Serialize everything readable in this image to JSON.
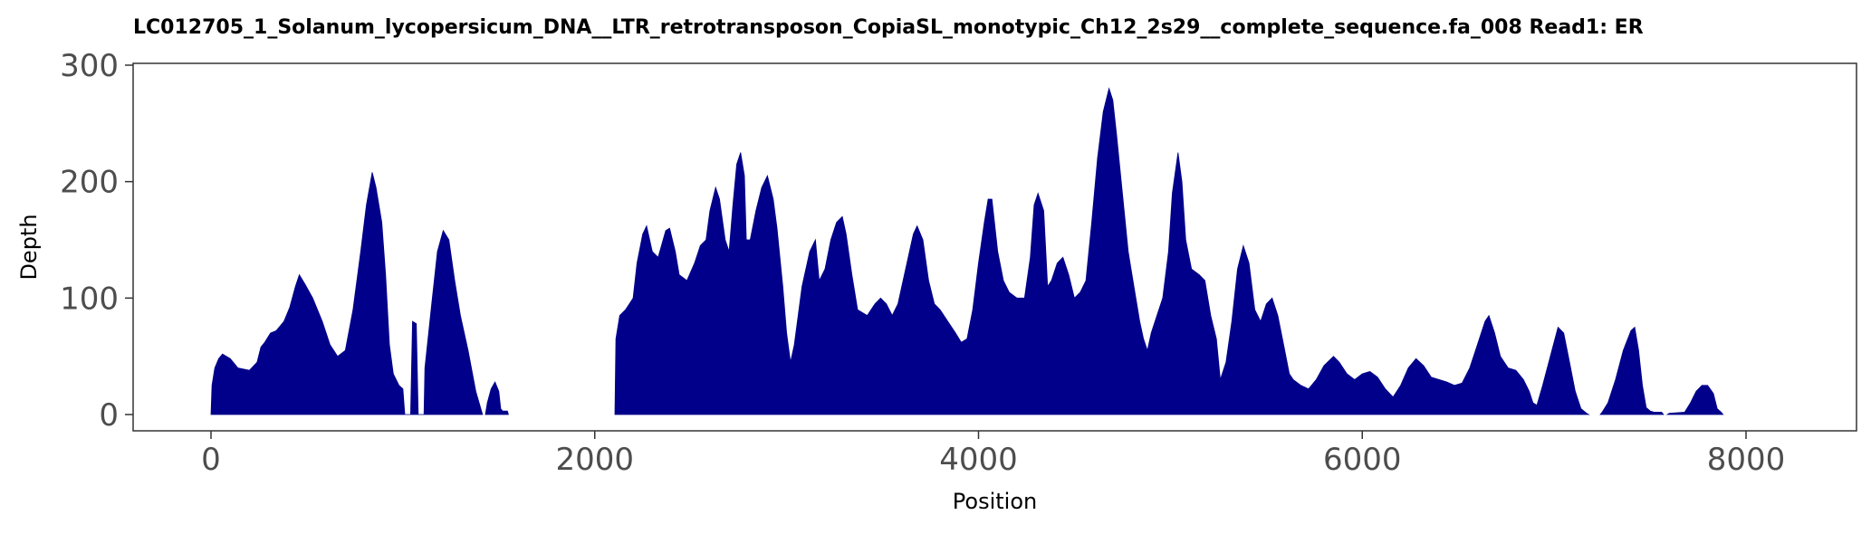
{
  "chart_data": {
    "type": "area",
    "title": "LC012705_1_Solanum_lycopersicum_DNA__LTR_retrotransposon_CopiaSL_monotypic_Ch12_2s29__complete_sequence.fa_008   Read1: ER",
    "xlabel": "Position",
    "ylabel": "Depth",
    "xlim": [
      -400,
      8550
    ],
    "ylim": [
      -12,
      300
    ],
    "x_ticks": [
      "0",
      "2000",
      "4000",
      "6000",
      "8000"
    ],
    "y_ticks": [
      "0",
      "100",
      "200",
      "300"
    ],
    "fill_color": "#00008B",
    "grid": false,
    "series": [
      {
        "segments": [
          [
            [
              0,
              0
            ],
            [
              5,
              25
            ],
            [
              20,
              40
            ],
            [
              40,
              48
            ],
            [
              60,
              52
            ],
            [
              100,
              48
            ],
            [
              140,
              40
            ],
            [
              200,
              38
            ],
            [
              240,
              45
            ],
            [
              260,
              58
            ],
            [
              280,
              62
            ],
            [
              310,
              70
            ],
            [
              340,
              72
            ],
            [
              380,
              80
            ],
            [
              410,
              92
            ],
            [
              440,
              110
            ],
            [
              460,
              120
            ],
            [
              490,
              112
            ],
            [
              530,
              100
            ],
            [
              580,
              80
            ],
            [
              620,
              60
            ],
            [
              660,
              50
            ],
            [
              700,
              55
            ],
            [
              740,
              90
            ],
            [
              780,
              140
            ],
            [
              810,
              180
            ],
            [
              840,
              208
            ],
            [
              860,
              195
            ],
            [
              890,
              165
            ],
            [
              910,
              120
            ],
            [
              930,
              60
            ],
            [
              950,
              35
            ],
            [
              980,
              25
            ],
            [
              1000,
              22
            ],
            [
              1010,
              0
            ],
            [
              1040,
              0
            ],
            [
              1050,
              80
            ],
            [
              1070,
              78
            ],
            [
              1080,
              0
            ],
            [
              1110,
              0
            ],
            [
              1115,
              40
            ],
            [
              1150,
              95
            ],
            [
              1180,
              140
            ],
            [
              1210,
              158
            ],
            [
              1240,
              150
            ],
            [
              1270,
              115
            ],
            [
              1300,
              85
            ],
            [
              1340,
              55
            ],
            [
              1380,
              20
            ],
            [
              1410,
              3
            ],
            [
              1415,
              0
            ]
          ],
          [
            [
              1430,
              0
            ],
            [
              1440,
              10
            ],
            [
              1460,
              22
            ],
            [
              1480,
              28
            ],
            [
              1500,
              20
            ],
            [
              1510,
              5
            ],
            [
              1520,
              3
            ],
            [
              1545,
              3
            ],
            [
              1550,
              0
            ]
          ],
          [
            [
              2105,
              0
            ],
            [
              2110,
              65
            ],
            [
              2130,
              85
            ],
            [
              2160,
              90
            ],
            [
              2180,
              95
            ],
            [
              2200,
              100
            ],
            [
              2220,
              130
            ],
            [
              2250,
              155
            ],
            [
              2270,
              162
            ],
            [
              2300,
              140
            ],
            [
              2330,
              135
            ],
            [
              2370,
              158
            ],
            [
              2390,
              160
            ],
            [
              2420,
              140
            ],
            [
              2440,
              120
            ],
            [
              2480,
              115
            ],
            [
              2520,
              130
            ],
            [
              2550,
              145
            ],
            [
              2580,
              150
            ],
            [
              2600,
              175
            ],
            [
              2630,
              195
            ],
            [
              2650,
              185
            ],
            [
              2680,
              150
            ],
            [
              2700,
              140
            ],
            [
              2720,
              180
            ],
            [
              2740,
              215
            ],
            [
              2760,
              225
            ],
            [
              2780,
              205
            ],
            [
              2790,
              150
            ],
            [
              2810,
              150
            ],
            [
              2840,
              175
            ],
            [
              2870,
              195
            ],
            [
              2900,
              205
            ],
            [
              2930,
              185
            ],
            [
              2950,
              160
            ],
            [
              2980,
              110
            ],
            [
              3000,
              70
            ],
            [
              3020,
              45
            ],
            [
              3040,
              60
            ],
            [
              3080,
              110
            ],
            [
              3120,
              140
            ],
            [
              3150,
              150
            ],
            [
              3170,
              115
            ],
            [
              3200,
              125
            ],
            [
              3230,
              150
            ],
            [
              3260,
              165
            ],
            [
              3290,
              170
            ],
            [
              3310,
              155
            ],
            [
              3340,
              120
            ],
            [
              3370,
              90
            ],
            [
              3420,
              85
            ],
            [
              3460,
              95
            ],
            [
              3490,
              100
            ],
            [
              3520,
              95
            ],
            [
              3550,
              85
            ],
            [
              3580,
              95
            ],
            [
              3620,
              125
            ],
            [
              3660,
              155
            ],
            [
              3680,
              162
            ],
            [
              3710,
              150
            ],
            [
              3740,
              115
            ],
            [
              3770,
              95
            ],
            [
              3800,
              90
            ],
            [
              3840,
              80
            ],
            [
              3880,
              70
            ],
            [
              3910,
              62
            ],
            [
              3940,
              65
            ],
            [
              3970,
              90
            ],
            [
              4000,
              130
            ],
            [
              4030,
              165
            ],
            [
              4050,
              185
            ],
            [
              4070,
              185
            ],
            [
              4100,
              140
            ],
            [
              4130,
              115
            ],
            [
              4160,
              105
            ],
            [
              4200,
              100
            ],
            [
              4240,
              100
            ],
            [
              4270,
              135
            ],
            [
              4290,
              180
            ],
            [
              4310,
              190
            ],
            [
              4340,
              175
            ],
            [
              4360,
              110
            ],
            [
              4380,
              115
            ],
            [
              4410,
              130
            ],
            [
              4440,
              135
            ],
            [
              4470,
              120
            ],
            [
              4500,
              100
            ],
            [
              4530,
              105
            ],
            [
              4560,
              115
            ],
            [
              4590,
              165
            ],
            [
              4620,
              220
            ],
            [
              4650,
              260
            ],
            [
              4680,
              280
            ],
            [
              4700,
              270
            ],
            [
              4720,
              240
            ],
            [
              4750,
              190
            ],
            [
              4780,
              140
            ],
            [
              4810,
              110
            ],
            [
              4840,
              80
            ],
            [
              4860,
              65
            ],
            [
              4880,
              55
            ],
            [
              4900,
              70
            ],
            [
              4930,
              85
            ],
            [
              4960,
              100
            ],
            [
              4990,
              140
            ],
            [
              5010,
              190
            ],
            [
              5040,
              225
            ],
            [
              5060,
              200
            ],
            [
              5080,
              150
            ],
            [
              5110,
              125
            ],
            [
              5150,
              120
            ],
            [
              5180,
              115
            ],
            [
              5210,
              85
            ],
            [
              5240,
              65
            ],
            [
              5260,
              30
            ],
            [
              5290,
              45
            ],
            [
              5320,
              80
            ],
            [
              5350,
              125
            ],
            [
              5380,
              145
            ],
            [
              5410,
              130
            ],
            [
              5440,
              90
            ],
            [
              5470,
              80
            ],
            [
              5500,
              95
            ],
            [
              5530,
              100
            ],
            [
              5560,
              85
            ],
            [
              5590,
              60
            ],
            [
              5620,
              35
            ],
            [
              5640,
              30
            ],
            [
              5680,
              25
            ],
            [
              5720,
              22
            ],
            [
              5760,
              30
            ],
            [
              5800,
              42
            ],
            [
              5850,
              50
            ],
            [
              5880,
              45
            ],
            [
              5920,
              35
            ],
            [
              5960,
              30
            ],
            [
              6000,
              35
            ],
            [
              6040,
              37
            ],
            [
              6080,
              32
            ],
            [
              6120,
              22
            ],
            [
              6160,
              15
            ],
            [
              6200,
              25
            ],
            [
              6240,
              40
            ],
            [
              6280,
              48
            ],
            [
              6320,
              42
            ],
            [
              6360,
              32
            ],
            [
              6400,
              30
            ],
            [
              6440,
              28
            ],
            [
              6480,
              25
            ],
            [
              6520,
              27
            ],
            [
              6560,
              40
            ],
            [
              6600,
              60
            ],
            [
              6640,
              80
            ],
            [
              6660,
              85
            ],
            [
              6690,
              70
            ],
            [
              6720,
              50
            ],
            [
              6760,
              40
            ],
            [
              6800,
              38
            ],
            [
              6840,
              30
            ],
            [
              6870,
              20
            ],
            [
              6890,
              10
            ],
            [
              6910,
              8
            ],
            [
              6940,
              25
            ],
            [
              6980,
              50
            ],
            [
              7020,
              75
            ],
            [
              7050,
              70
            ],
            [
              7080,
              45
            ],
            [
              7110,
              20
            ],
            [
              7140,
              5
            ],
            [
              7170,
              1
            ],
            [
              7180,
              0
            ]
          ],
          [
            [
              7240,
              0
            ],
            [
              7250,
              2
            ],
            [
              7280,
              10
            ],
            [
              7320,
              30
            ],
            [
              7360,
              55
            ],
            [
              7400,
              72
            ],
            [
              7420,
              75
            ],
            [
              7440,
              55
            ],
            [
              7460,
              25
            ],
            [
              7480,
              6
            ],
            [
              7500,
              3
            ],
            [
              7520,
              2
            ],
            [
              7560,
              2
            ],
            [
              7570,
              0
            ]
          ],
          [
            [
              7590,
              0
            ],
            [
              7600,
              1
            ],
            [
              7680,
              2
            ],
            [
              7710,
              10
            ],
            [
              7740,
              20
            ],
            [
              7770,
              25
            ],
            [
              7800,
              25
            ],
            [
              7830,
              18
            ],
            [
              7850,
              5
            ],
            [
              7870,
              2
            ],
            [
              7880,
              0
            ]
          ]
        ]
      }
    ]
  }
}
